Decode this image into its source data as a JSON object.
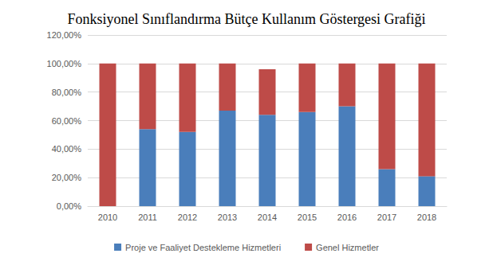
{
  "chart_data": {
    "type": "bar",
    "title": "Fonksiyonel Sınıflandırma Bütçe Kullanım Göstergesi Grafiği",
    "categories": [
      "2010",
      "2011",
      "2012",
      "2013",
      "2014",
      "2015",
      "2016",
      "2017",
      "2018"
    ],
    "series": [
      {
        "name": "Proje ve Faaliyet Destekleme Hizmetleri",
        "color": "#4a7ebb",
        "values": [
          0,
          54,
          52,
          67,
          64,
          66,
          70,
          26,
          21
        ]
      },
      {
        "name": "Genel Hizmetler",
        "color": "#be4b48",
        "values": [
          100,
          46,
          48,
          33,
          32,
          34,
          30,
          74,
          79
        ]
      }
    ],
    "ylim": [
      0,
      120
    ],
    "yticks": [
      {
        "value": 0,
        "label": "0,00%"
      },
      {
        "value": 20,
        "label": "20,00%"
      },
      {
        "value": 40,
        "label": "40,00%"
      },
      {
        "value": 60,
        "label": "60,00%"
      },
      {
        "value": 80,
        "label": "80,00%"
      },
      {
        "value": 100,
        "label": "100,00%"
      },
      {
        "value": 120,
        "label": "120,00%"
      }
    ],
    "stacked": true,
    "grid": true,
    "legend": "bottom"
  }
}
